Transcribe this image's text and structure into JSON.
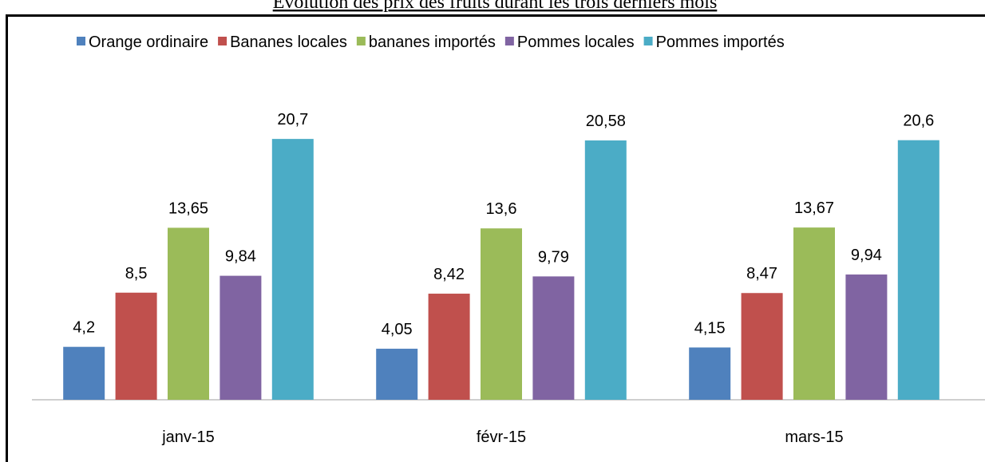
{
  "chart_data": {
    "type": "bar",
    "title": "Évolution des prix des fruits durant les trois derniers mois",
    "categories": [
      "janv-15",
      "févr-15",
      "mars-15"
    ],
    "series": [
      {
        "name": "Orange ordinaire",
        "color": "#4f81bd",
        "values": [
          4.2,
          4.05,
          4.15
        ],
        "value_labels": [
          "4,2",
          "4,05",
          "4,15"
        ]
      },
      {
        "name": "Bananes locales",
        "color": "#c0504d",
        "values": [
          8.5,
          8.42,
          8.47
        ],
        "value_labels": [
          "8,5",
          "8,42",
          "8,47"
        ]
      },
      {
        "name": "bananes importés",
        "color": "#9bbb59",
        "values": [
          13.65,
          13.6,
          13.67
        ],
        "value_labels": [
          "13,65",
          "13,6",
          "13,67"
        ]
      },
      {
        "name": "Pommes locales",
        "color": "#8064a2",
        "values": [
          9.84,
          9.79,
          9.94
        ],
        "value_labels": [
          "9,84",
          "9,79",
          "9,94"
        ]
      },
      {
        "name": "Pommes importés",
        "color": "#4bacc6",
        "values": [
          20.7,
          20.58,
          20.6
        ],
        "value_labels": [
          "20,7",
          "20,58",
          "20,6"
        ]
      }
    ],
    "ylim": [
      0,
      24
    ],
    "legend": "top"
  }
}
